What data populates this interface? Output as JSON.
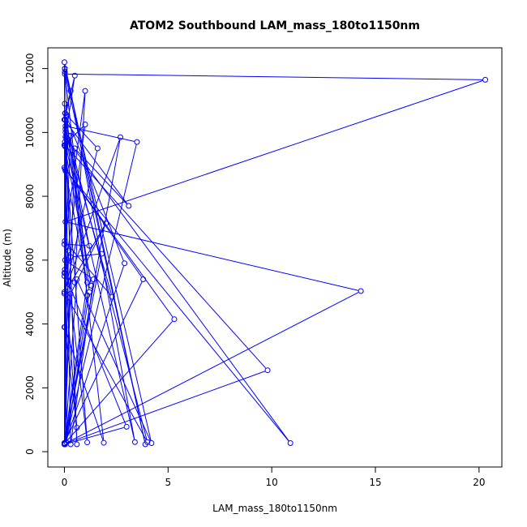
{
  "chart_data": {
    "type": "line",
    "title": "ATOM2 Southbound LAM_mass_180to1150nm",
    "xlabel": "LAM_mass_180to1150nm",
    "ylabel": "Altitude (m)",
    "xlim": [
      -0.8,
      21.1
    ],
    "ylim": [
      -480,
      12650
    ],
    "xticks": [
      0,
      5,
      10,
      15,
      20
    ],
    "yticks": [
      0,
      2000,
      4000,
      6000,
      8000,
      10000,
      12000
    ],
    "grid": false,
    "legend": "none",
    "line_color": "#0000ff",
    "marker": "open-circle",
    "series": [
      {
        "x": [
          0.02,
          0.02,
          20.3,
          0.05,
          14.3,
          0.02,
          9.8,
          0.03,
          0.05,
          0.03,
          10.9,
          0.05,
          0.5,
          0.0,
          3.1,
          0.5,
          0.0,
          0.04,
          0.6,
          0.04,
          0.3,
          3.4,
          0.02,
          1.1,
          0.0,
          1.2,
          0.05,
          3.5,
          0.02,
          2.9,
          0.1,
          0.02,
          0.2,
          0.0,
          3.8,
          0.0,
          5.3,
          0.0,
          0.3,
          2.0,
          0.0,
          1.6,
          0.03,
          0.02,
          0.0,
          0.5,
          1.0,
          0.02,
          2.3,
          0.05,
          1.3,
          0.0,
          1.0,
          0.02,
          0.3,
          1.8,
          0.0,
          1.1,
          0.05,
          0.2,
          4.0,
          0.0,
          2.7,
          0.02,
          0.6,
          4.2,
          0.02,
          0.1,
          1.9,
          0.0,
          0.02,
          0.3,
          1.4,
          0.03,
          0.3,
          1.1,
          0.0,
          3.0,
          0.0,
          0.6,
          0.02,
          0.05,
          0.1,
          1.2,
          0.02,
          3.9,
          0.0,
          0.02,
          0.1
        ],
        "y": [
          12000,
          11830,
          11650,
          7200,
          5030,
          250,
          2550,
          9600,
          9550,
          8850,
          270,
          9860,
          11780,
          10400,
          7700,
          9500,
          270,
          10400,
          230,
          10600,
          11300,
          300,
          9700,
          290,
          6500,
          6450,
          10200,
          9700,
          230,
          5900,
          10500,
          5700,
          6300,
          270,
          5400,
          8900,
          4150,
          250,
          4950,
          7150,
          4950,
          9500,
          10600,
          230,
          5500,
          5300,
          11300,
          6600,
          4850,
          10000,
          5200,
          9600,
          10250,
          5600,
          6100,
          6200,
          270,
          5300,
          8800,
          9900,
          300,
          5000,
          9850,
          230,
          5400,
          270,
          12000,
          10550,
          280,
          3900,
          10900,
          230,
          5400,
          6000,
          9900,
          4900,
          230,
          780,
          5600,
          750,
          3900,
          10100,
          290,
          5000,
          11900,
          230,
          12200,
          230,
          9850
        ]
      }
    ]
  }
}
